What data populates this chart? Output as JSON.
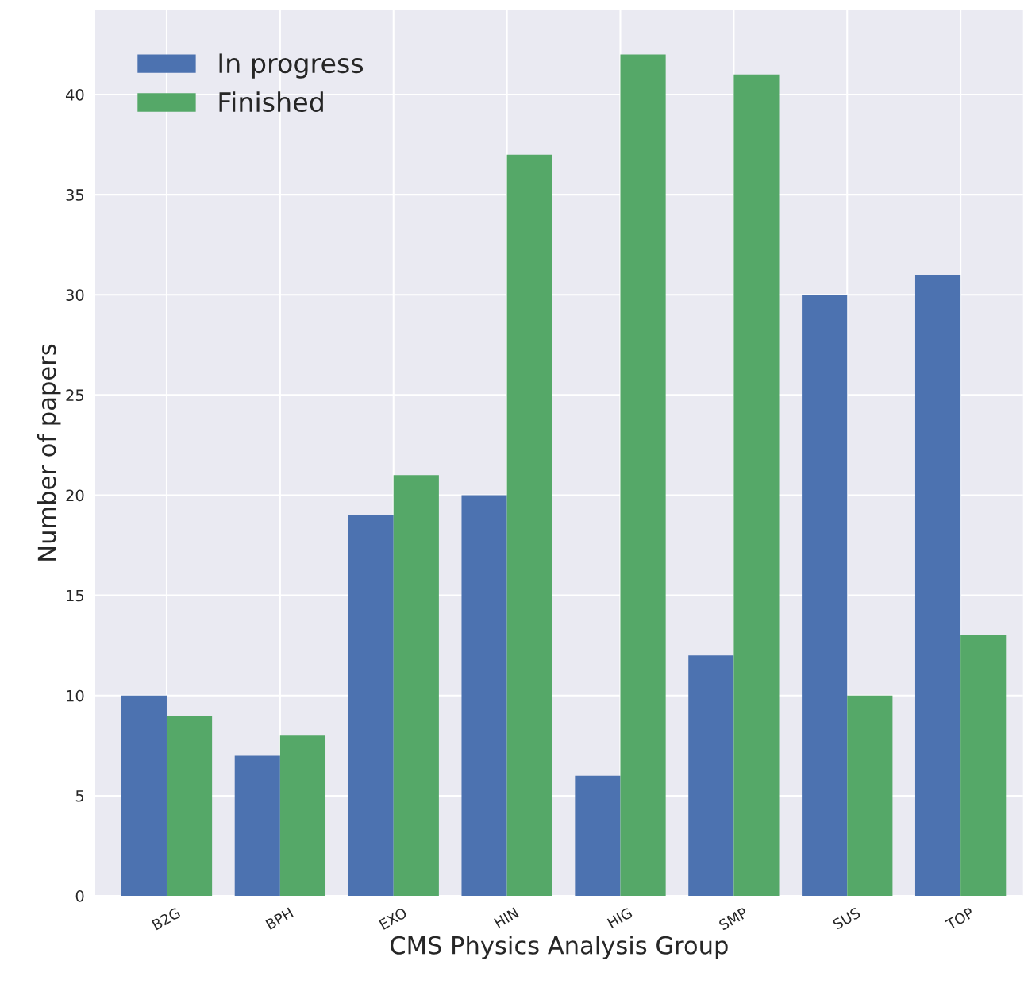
{
  "chart_data": {
    "type": "bar",
    "xlabel": "CMS Physics Analysis Group",
    "ylabel": "Number of papers",
    "categories": [
      "B2G",
      "BPH",
      "EXO",
      "HIN",
      "HIG",
      "SMP",
      "SUS",
      "TOP"
    ],
    "series": [
      {
        "name": "In progress",
        "color": "#4c72b0",
        "values": [
          10,
          7,
          19,
          20,
          6,
          12,
          30,
          31
        ]
      },
      {
        "name": "Finished",
        "color": "#55a868",
        "values": [
          9,
          8,
          21,
          37,
          42,
          41,
          10,
          13
        ]
      }
    ],
    "ylim": [
      0,
      44.2
    ],
    "yticks": [
      0,
      5,
      10,
      15,
      20,
      25,
      30,
      35,
      40
    ],
    "grid": true,
    "legend": "top left"
  }
}
